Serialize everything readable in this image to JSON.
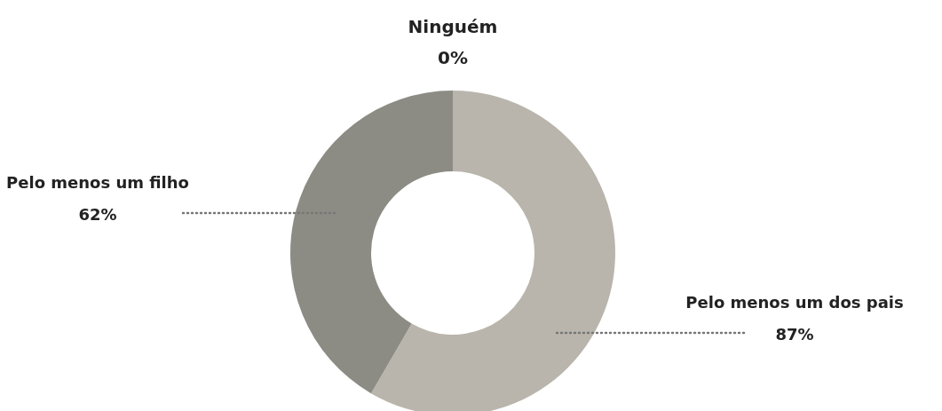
{
  "chart_data": {
    "type": "donut",
    "categories": [
      "Pelo menos um dos pais",
      "Pelo menos um filho",
      "Ninguém"
    ],
    "values": [
      87,
      62,
      0
    ],
    "colors": [
      "#b9b5ac",
      "#8c8c84",
      "#6e6e66"
    ],
    "value_labels": [
      "87%",
      "62%",
      "0%"
    ]
  }
}
